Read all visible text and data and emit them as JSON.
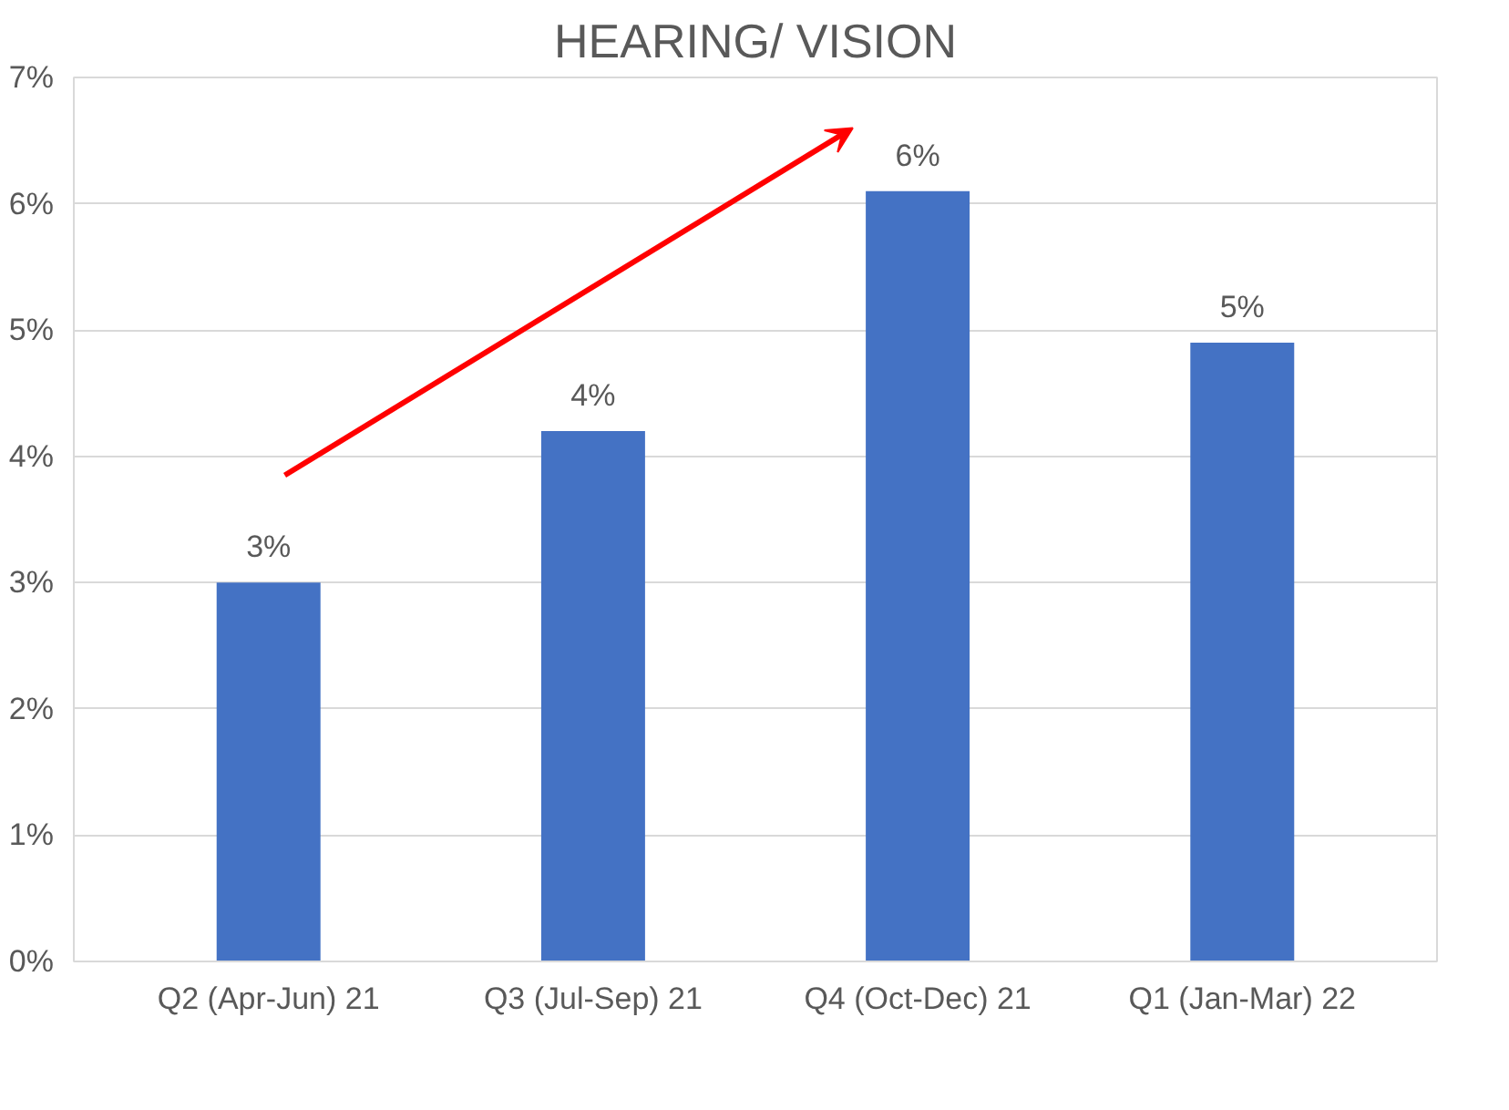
{
  "chart_data": {
    "type": "bar",
    "title": "HEARING/ VISION",
    "categories": [
      "Q2 (Apr-Jun) 21",
      "Q3 (Jul-Sep) 21",
      "Q4 (Oct-Dec) 21",
      "Q1 (Jan-Mar) 22"
    ],
    "values": [
      3.0,
      4.2,
      6.1,
      4.9
    ],
    "value_labels": [
      "3%",
      "4%",
      "6%",
      "5%"
    ],
    "color": "#4472c4",
    "ylim": [
      0,
      7
    ],
    "yticks": [
      {
        "value": 0,
        "label": "0%"
      },
      {
        "value": 1,
        "label": "1%"
      },
      {
        "value": 2,
        "label": "2%"
      },
      {
        "value": 3,
        "label": "3%"
      },
      {
        "value": 4,
        "label": "4%"
      },
      {
        "value": 5,
        "label": "5%"
      },
      {
        "value": 6,
        "label": "6%"
      },
      {
        "value": 7,
        "label": "7%"
      }
    ],
    "grid": "y"
  }
}
